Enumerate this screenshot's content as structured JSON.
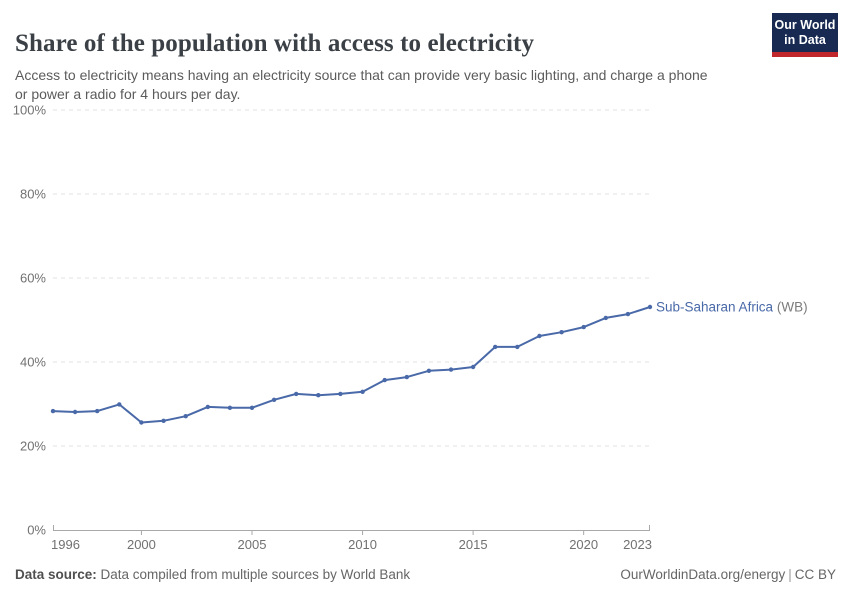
{
  "header": {
    "title": "Share of the population with access to electricity",
    "subtitle": "Access to electricity means having an electricity source that can provide very basic lighting, and charge a phone\nor power a radio for 4 hours per day.",
    "logo": {
      "line1": "Our World",
      "line2": "in Data",
      "bg_color": "#182a52",
      "accent_color": "#c0272d",
      "text_color": "#ffffff"
    }
  },
  "chart_data": {
    "type": "line",
    "title": "Share of the population with access to electricity",
    "xlabel": "",
    "ylabel": "",
    "xlim": [
      1996,
      2023
    ],
    "ylim": [
      0,
      100
    ],
    "yticks": [
      0,
      20,
      40,
      60,
      80,
      100
    ],
    "ytick_suffix": "%",
    "xticks": [
      1996,
      2000,
      2005,
      2010,
      2015,
      2020,
      2023
    ],
    "grid": "horizontal-dashed",
    "legend_position": "end-of-line",
    "x": [
      1996,
      1997,
      1998,
      1999,
      2000,
      2001,
      2002,
      2003,
      2004,
      2005,
      2006,
      2007,
      2008,
      2009,
      2010,
      2011,
      2012,
      2013,
      2014,
      2015,
      2016,
      2017,
      2018,
      2019,
      2020,
      2021,
      2022,
      2023
    ],
    "series": [
      {
        "name": "Sub-Saharan Africa",
        "name_suffix": " (WB)",
        "color": "#4969a8",
        "values": [
          28.3,
          28.1,
          28.3,
          29.9,
          25.6,
          26.0,
          27.1,
          29.3,
          29.1,
          29.1,
          31.0,
          32.4,
          32.1,
          32.4,
          32.9,
          35.7,
          36.4,
          37.9,
          38.2,
          38.8,
          43.6,
          43.6,
          46.2,
          47.1,
          48.3,
          50.5,
          51.4,
          53.1
        ]
      }
    ],
    "colors": {
      "gridline": "#e0e0e0",
      "axis": "#a8a8a8",
      "tick_label": "#717171",
      "suffix_label": "#757575"
    }
  },
  "footer": {
    "source_label": "Data source:",
    "source_text": " Data compiled from multiple sources by World Bank",
    "url": "OurWorldinData.org/energy",
    "separator": "|",
    "license": "CC BY"
  }
}
